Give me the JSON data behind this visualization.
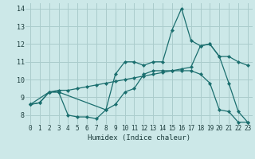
{
  "xlabel": "Humidex (Indice chaleur)",
  "bg_color": "#cce8e8",
  "line_color": "#1a6e6e",
  "grid_color": "#aacccc",
  "xlim": [
    -0.5,
    23.5
  ],
  "ylim": [
    7.5,
    14.3
  ],
  "xticks": [
    0,
    1,
    2,
    3,
    4,
    5,
    6,
    7,
    8,
    9,
    10,
    11,
    12,
    13,
    14,
    15,
    16,
    17,
    18,
    19,
    20,
    21,
    22,
    23
  ],
  "yticks": [
    8,
    9,
    10,
    11,
    12,
    13,
    14
  ],
  "line1_x": [
    0,
    1,
    2,
    3,
    4,
    5,
    6,
    7,
    8,
    9,
    10,
    11,
    12,
    13,
    14,
    15,
    16,
    17,
    18,
    19,
    20,
    21,
    22,
    23
  ],
  "line1_y": [
    8.6,
    8.7,
    9.3,
    9.3,
    8.0,
    7.9,
    7.9,
    7.8,
    8.3,
    8.6,
    9.3,
    9.5,
    10.3,
    10.5,
    10.5,
    10.5,
    10.5,
    10.5,
    10.3,
    9.8,
    8.3,
    8.2,
    7.6,
    7.6
  ],
  "line2_x": [
    0,
    1,
    2,
    3,
    4,
    5,
    6,
    7,
    8,
    9,
    10,
    11,
    12,
    13,
    14,
    15,
    16,
    17,
    18,
    19,
    20,
    21,
    22,
    23
  ],
  "line2_y": [
    8.6,
    8.7,
    9.3,
    9.4,
    9.4,
    9.5,
    9.6,
    9.7,
    9.8,
    9.9,
    10.0,
    10.1,
    10.2,
    10.3,
    10.4,
    10.5,
    10.6,
    10.7,
    11.9,
    12.0,
    11.3,
    11.3,
    11.0,
    10.8
  ],
  "line3_x": [
    0,
    2,
    3,
    8,
    9,
    10,
    11,
    12,
    13,
    14,
    15,
    16,
    17,
    18,
    19,
    20,
    21,
    22,
    23
  ],
  "line3_y": [
    8.6,
    9.3,
    9.3,
    8.3,
    10.3,
    11.0,
    11.0,
    10.8,
    11.0,
    11.0,
    12.8,
    14.0,
    12.2,
    11.9,
    12.0,
    11.3,
    9.8,
    8.2,
    7.6
  ],
  "xlabel_fontsize": 6.5,
  "tick_fontsize": 5.5
}
